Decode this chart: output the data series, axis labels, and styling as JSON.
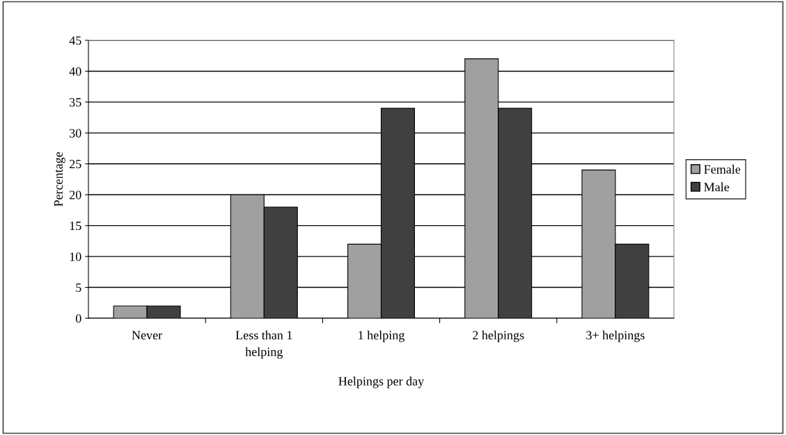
{
  "chart_data": {
    "type": "bar",
    "xlabel": "Helpings per day",
    "ylabel": "Percentage",
    "categories": [
      "Never",
      "Less than 1\nhelping",
      "1 helping",
      "2 helpings",
      "3+ helpings"
    ],
    "series": [
      {
        "name": "Female",
        "color": "#a0a0a0",
        "values": [
          2,
          20,
          12,
          42,
          24
        ]
      },
      {
        "name": "Male",
        "color": "#404040",
        "values": [
          2,
          18,
          34,
          34,
          12
        ]
      }
    ],
    "ylim": [
      0,
      45
    ],
    "yticks": [
      0,
      5,
      10,
      15,
      20,
      25,
      30,
      35,
      40,
      45
    ],
    "grid": "y",
    "legend": "right"
  }
}
